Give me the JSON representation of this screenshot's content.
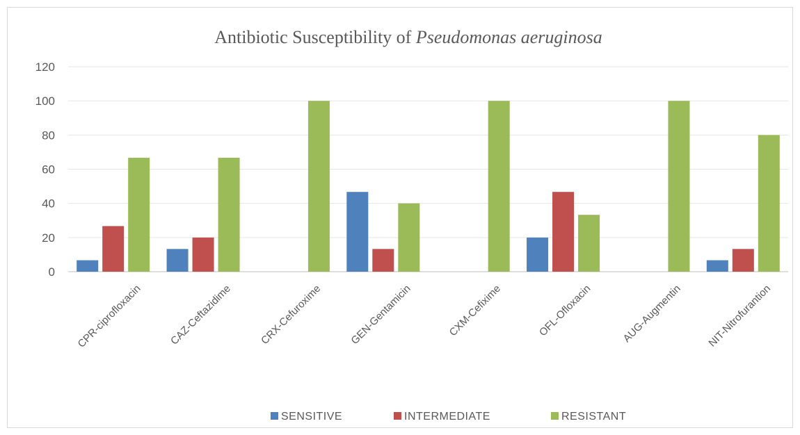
{
  "chart_data": {
    "type": "bar",
    "title": "Antibiotic Susceptibility of ",
    "title_italic": "Pseudomonas aeruginosa",
    "categories": [
      "CPR-ciprofloxacin",
      "CAZ-Ceftazidime",
      "CRX-Cefuroxime",
      "GEN-Gentamicin",
      "CXM-Cefixime",
      "OFL-Ofloxacin",
      "AUG-Augmentin",
      "NIT-Nitrofurantion"
    ],
    "series": [
      {
        "name": "SENSITIVE",
        "color": "#4f81bd",
        "values": [
          6.7,
          13.3,
          0,
          46.7,
          0,
          20,
          0,
          6.7
        ]
      },
      {
        "name": "INTERMEDIATE",
        "color": "#c0504d",
        "values": [
          26.7,
          20,
          0,
          13.3,
          0,
          46.7,
          0,
          13.3
        ]
      },
      {
        "name": "RESISTANT",
        "color": "#9bbb59",
        "values": [
          66.7,
          66.7,
          100,
          40,
          100,
          33.3,
          100,
          80
        ]
      }
    ],
    "ylim": [
      0,
      120
    ],
    "yticks": [
      "0",
      "20",
      "40",
      "60",
      "80",
      "100",
      "120"
    ],
    "grid": true,
    "legend_position": "bottom"
  }
}
